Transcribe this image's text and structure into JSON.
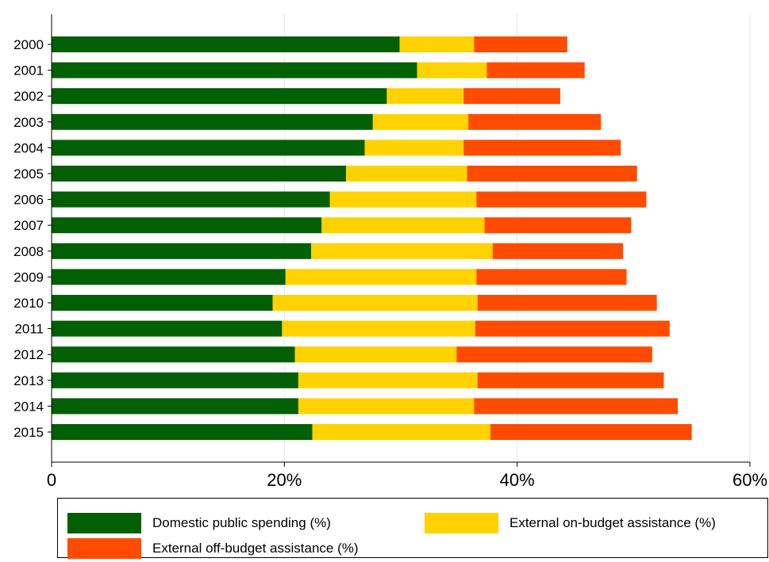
{
  "chart_data": {
    "type": "bar",
    "orientation": "horizontal",
    "stacked": true,
    "categories": [
      "2000",
      "2001",
      "2002",
      "2003",
      "2004",
      "2005",
      "2006",
      "2007",
      "2008",
      "2009",
      "2010",
      "2011",
      "2012",
      "2013",
      "2014",
      "2015"
    ],
    "series": [
      {
        "name": "Domestic public spending (%)",
        "color": "#035f03",
        "values": [
          29.9,
          31.4,
          28.8,
          27.6,
          26.9,
          25.3,
          23.9,
          23.2,
          22.3,
          20.1,
          19.0,
          19.8,
          20.9,
          21.2,
          21.2,
          22.4
        ]
      },
      {
        "name": "External on-budget assistance (%)",
        "color": "#ffd200",
        "values": [
          6.4,
          6.0,
          6.6,
          8.2,
          8.5,
          10.4,
          12.6,
          14.0,
          15.6,
          16.4,
          17.6,
          16.6,
          13.9,
          15.4,
          15.1,
          15.3
        ]
      },
      {
        "name": "External off-budget assistance (%)",
        "color": "#ff4b00",
        "values": [
          8.0,
          8.4,
          8.3,
          11.4,
          13.5,
          14.6,
          14.6,
          12.6,
          11.2,
          12.9,
          15.4,
          16.7,
          16.8,
          16.0,
          17.5,
          17.3
        ]
      }
    ],
    "xlim": [
      0,
      60
    ],
    "xticks": [
      0,
      20,
      40,
      60
    ],
    "xtick_labels": [
      "0",
      "20%",
      "40%",
      "60%"
    ],
    "grid": "vertical",
    "legend_position": "bottom"
  }
}
